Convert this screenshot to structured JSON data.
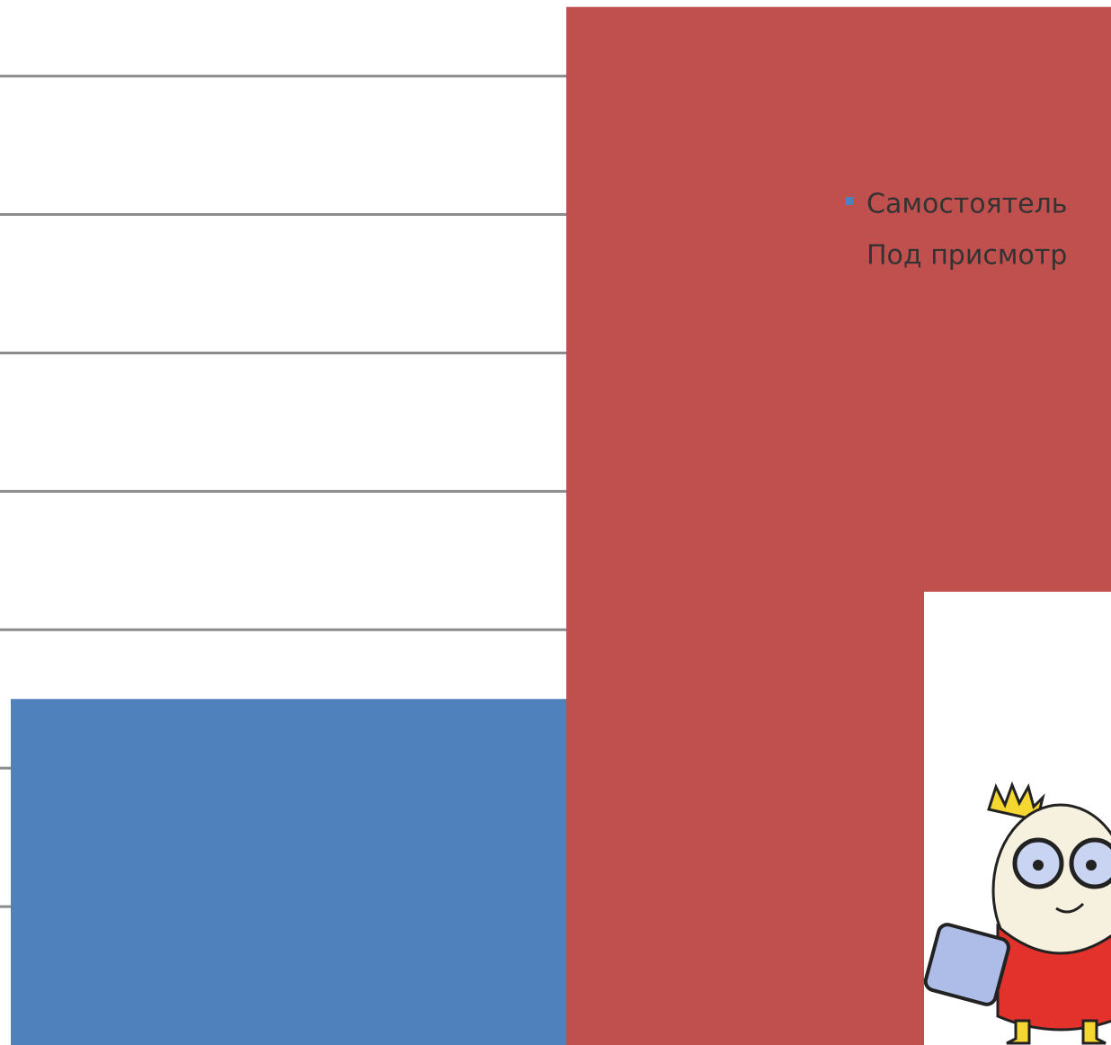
{
  "chart_data": {
    "type": "bar",
    "categories": [
      null
    ],
    "series": [
      {
        "name": "Самостоятель",
        "color": "#4f81bd",
        "values": [
          2.5
        ]
      },
      {
        "name": "Под присмотр",
        "color": "#c0504d",
        "values": [
          7.5
        ]
      }
    ],
    "ylim": [
      0,
      7.55
    ],
    "yticks": [
      1,
      2,
      3,
      4,
      5,
      6,
      7
    ],
    "grid": true,
    "legend": "right"
  }
}
